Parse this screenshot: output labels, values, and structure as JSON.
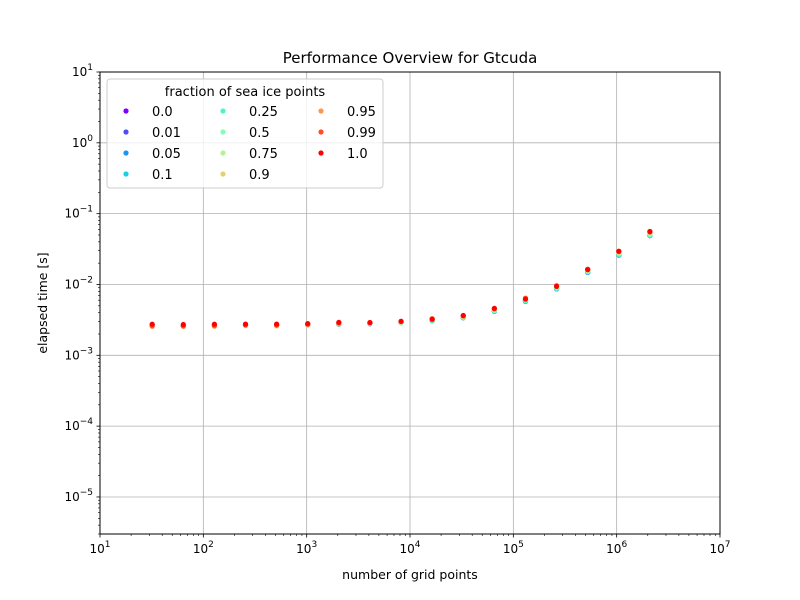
{
  "chart_data": {
    "type": "scatter",
    "title": "Performance Overview for Gtcuda",
    "xlabel": "number of grid points",
    "ylabel": "elapsed time [s]",
    "xscale": "log",
    "yscale": "log",
    "xlim": [
      10,
      10000000
    ],
    "ylim": [
      3e-06,
      10
    ],
    "grid": true,
    "x_ticks": [
      {
        "base": "10",
        "exp": "1"
      },
      {
        "base": "10",
        "exp": "2"
      },
      {
        "base": "10",
        "exp": "3"
      },
      {
        "base": "10",
        "exp": "4"
      },
      {
        "base": "10",
        "exp": "5"
      },
      {
        "base": "10",
        "exp": "6"
      },
      {
        "base": "10",
        "exp": "7"
      }
    ],
    "y_ticks": [
      {
        "base": "10",
        "exp": "−5"
      },
      {
        "base": "10",
        "exp": "−4"
      },
      {
        "base": "10",
        "exp": "−3"
      },
      {
        "base": "10",
        "exp": "−2"
      },
      {
        "base": "10",
        "exp": "−1"
      },
      {
        "base": "10",
        "exp": "0"
      },
      {
        "base": "10",
        "exp": "1"
      }
    ],
    "legend": {
      "title": "fraction of sea ice points",
      "placement": "upper-left",
      "columns": 3
    },
    "x": [
      32,
      64,
      128,
      256,
      512,
      1024,
      2048,
      4096,
      8192,
      16384,
      32768,
      65536,
      131072,
      262144,
      524288,
      1048576,
      2097152
    ],
    "series": [
      {
        "name": "0.0",
        "color": "#8000ff",
        "values": [
          0.00265,
          0.00262,
          0.00265,
          0.00268,
          0.00266,
          0.0027,
          0.00275,
          0.0028,
          0.0029,
          0.0031,
          0.0034,
          0.0042,
          0.0058,
          0.0087,
          0.0148,
          0.026,
          0.049
        ]
      },
      {
        "name": "0.01",
        "color": "#4e4dfc",
        "values": [
          0.00265,
          0.00262,
          0.00265,
          0.00268,
          0.00266,
          0.0027,
          0.00275,
          0.0028,
          0.0029,
          0.0031,
          0.0034,
          0.0042,
          0.0058,
          0.0087,
          0.0148,
          0.026,
          0.049
        ]
      },
      {
        "name": "0.05",
        "color": "#1996f3",
        "values": [
          0.00266,
          0.00263,
          0.00266,
          0.00269,
          0.00267,
          0.0027,
          0.00276,
          0.0028,
          0.0029,
          0.0031,
          0.0034,
          0.0042,
          0.0058,
          0.0087,
          0.0149,
          0.0262,
          0.0492
        ]
      },
      {
        "name": "0.1",
        "color": "#1acfe1",
        "values": [
          0.00266,
          0.00263,
          0.00266,
          0.00269,
          0.00267,
          0.0027,
          0.00276,
          0.0028,
          0.0029,
          0.0031,
          0.0034,
          0.0042,
          0.0058,
          0.0087,
          0.0149,
          0.0262,
          0.0492
        ]
      },
      {
        "name": "0.25",
        "color": "#4df3ce",
        "values": [
          0.00267,
          0.00264,
          0.00267,
          0.0027,
          0.00268,
          0.00271,
          0.00277,
          0.00281,
          0.00291,
          0.00312,
          0.00342,
          0.00425,
          0.0059,
          0.0088,
          0.0151,
          0.0266,
          0.0498
        ]
      },
      {
        "name": "0.5",
        "color": "#80ffb4",
        "values": [
          0.00268,
          0.00265,
          0.00268,
          0.00271,
          0.00269,
          0.00272,
          0.00278,
          0.00282,
          0.00292,
          0.00315,
          0.00346,
          0.0043,
          0.006,
          0.009,
          0.0154,
          0.0272,
          0.051
        ]
      },
      {
        "name": "0.75",
        "color": "#b2f396",
        "values": [
          0.00266,
          0.00263,
          0.00266,
          0.0027,
          0.00268,
          0.00272,
          0.00279,
          0.00283,
          0.00294,
          0.00318,
          0.0035,
          0.00437,
          0.0061,
          0.0092,
          0.0157,
          0.028,
          0.053
        ]
      },
      {
        "name": "0.9",
        "color": "#e6cf73",
        "values": [
          0.00255,
          0.00256,
          0.00256,
          0.00262,
          0.0026,
          0.00268,
          0.0028,
          0.00285,
          0.00297,
          0.00322,
          0.00356,
          0.00445,
          0.0062,
          0.0094,
          0.0161,
          0.0287,
          0.0545
        ]
      },
      {
        "name": "0.95",
        "color": "#ff964e",
        "values": [
          0.00258,
          0.00258,
          0.0026,
          0.00266,
          0.00264,
          0.00272,
          0.00285,
          0.00288,
          0.003,
          0.00326,
          0.0036,
          0.0045,
          0.0063,
          0.0095,
          0.0163,
          0.029,
          0.055
        ]
      },
      {
        "name": "0.99",
        "color": "#ff4d27",
        "values": [
          0.00262,
          0.0026,
          0.00264,
          0.0027,
          0.00268,
          0.00276,
          0.00288,
          0.0029,
          0.00302,
          0.00328,
          0.00362,
          0.00455,
          0.0064,
          0.0096,
          0.0164,
          0.0293,
          0.0555
        ]
      },
      {
        "name": "1.0",
        "color": "#ff0000",
        "values": [
          0.00275,
          0.00272,
          0.00275,
          0.00276,
          0.00276,
          0.0028,
          0.00292,
          0.0029,
          0.00302,
          0.00322,
          0.00365,
          0.0046,
          0.0062,
          0.0094,
          0.0162,
          0.0295,
          0.056
        ]
      }
    ]
  }
}
